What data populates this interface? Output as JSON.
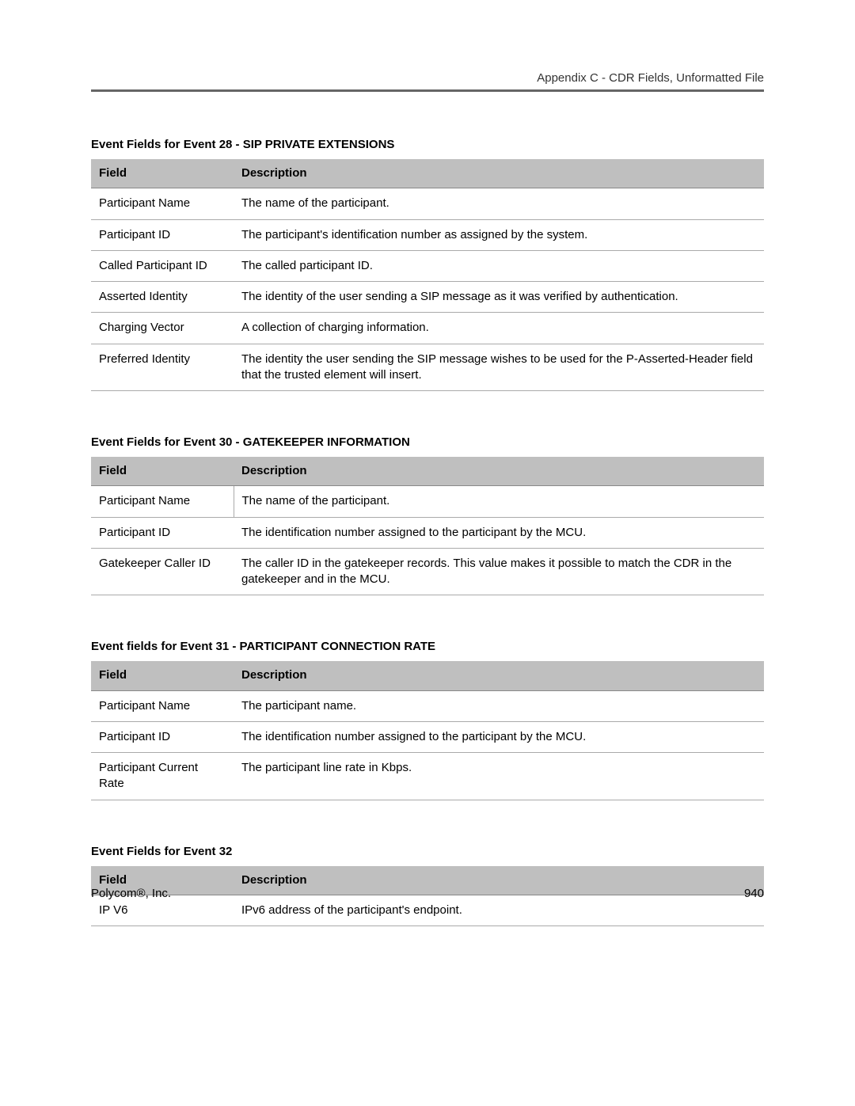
{
  "header": {
    "running_title": "Appendix C - CDR Fields, Unformatted File"
  },
  "sections": [
    {
      "title": "Event Fields for Event 28 - SIP PRIVATE EXTENSIONS",
      "columns": {
        "field": "Field",
        "description": "Description"
      },
      "vline_rows": [],
      "rows": [
        {
          "field": "Participant Name",
          "description": "The name of the participant."
        },
        {
          "field": "Participant ID",
          "description": "The participant's identification number as assigned by the system."
        },
        {
          "field": "Called Participant ID",
          "description": "The called participant ID."
        },
        {
          "field": "Asserted Identity",
          "description": "The identity of the user sending a SIP message as it was verified by authentication."
        },
        {
          "field": "Charging Vector",
          "description": "A collection of charging information."
        },
        {
          "field": "Preferred Identity",
          "description": "The identity the user sending the SIP message wishes to be used for the P-Asserted-Header field that the trusted element will insert."
        }
      ]
    },
    {
      "title": "Event Fields for Event 30 - GATEKEEPER INFORMATION",
      "columns": {
        "field": "Field",
        "description": "Description"
      },
      "vline_rows": [
        0
      ],
      "rows": [
        {
          "field": "Participant Name",
          "description": "The name of the participant."
        },
        {
          "field": "Participant ID",
          "description": "The identification number assigned to the participant by the MCU."
        },
        {
          "field": "Gatekeeper Caller ID",
          "description": "The caller ID in the gatekeeper records. This value makes it possible to match the CDR in the gatekeeper and in the MCU."
        }
      ]
    },
    {
      "title": "Event fields for Event 31 - PARTICIPANT CONNECTION RATE",
      "columns": {
        "field": "Field",
        "description": "Description"
      },
      "vline_rows": [],
      "rows": [
        {
          "field": "Participant Name",
          "description": "The participant name."
        },
        {
          "field": "Participant ID",
          "description": "The identification number assigned to the participant by the MCU."
        },
        {
          "field": "Participant Current Rate",
          "description": "The participant line rate in Kbps."
        }
      ]
    },
    {
      "title": "Event Fields for Event 32",
      "columns": {
        "field": "Field",
        "description": "Description"
      },
      "vline_rows": [],
      "rows": [
        {
          "field": "IP V6",
          "description": "IPv6 address of the participant's endpoint."
        }
      ]
    }
  ],
  "footer": {
    "company": "Polycom®, Inc.",
    "page_number": "940"
  }
}
